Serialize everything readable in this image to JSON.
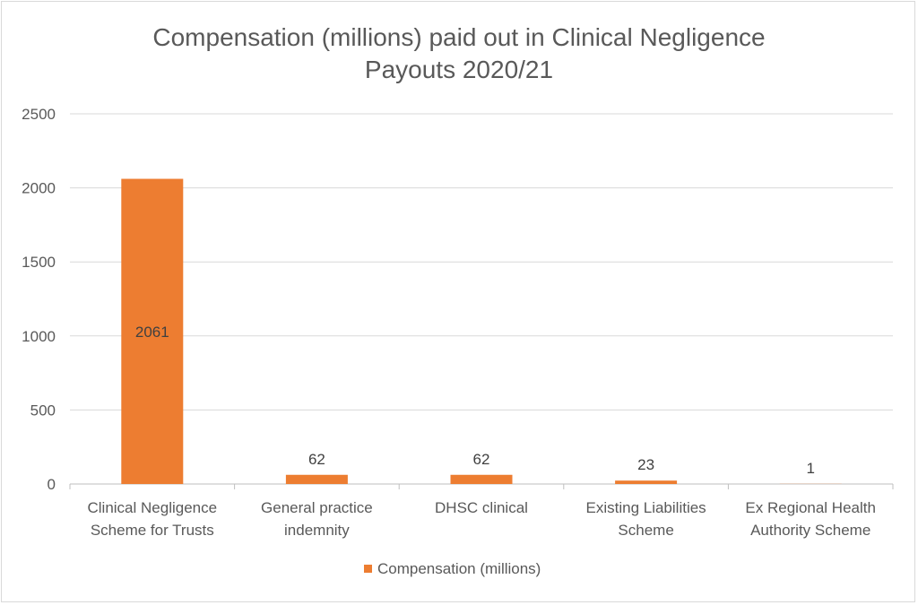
{
  "chart_data": {
    "type": "bar",
    "title_line1": "Compensation (millions) paid out in Clinical Negligence",
    "title_line2": "Payouts 2020/21",
    "categories": [
      [
        "Clinical Negligence",
        "Scheme for Trusts"
      ],
      [
        "General practice",
        "indemnity"
      ],
      [
        "DHSC clinical"
      ],
      [
        "Existing Liabilities",
        "Scheme"
      ],
      [
        "Ex Regional Health",
        "Authority Scheme"
      ]
    ],
    "series": [
      {
        "name": "Compensation (millions)",
        "values": [
          2061,
          62,
          62,
          23,
          1
        ],
        "color": "#ed7d31"
      }
    ],
    "data_labels": [
      "2061",
      "62",
      "62",
      "23",
      "1"
    ],
    "ylim": [
      0,
      2500
    ],
    "yticks": [
      "0",
      "500",
      "1000",
      "1500",
      "2000",
      "2500"
    ],
    "grid": true,
    "legend_position": "bottom"
  }
}
